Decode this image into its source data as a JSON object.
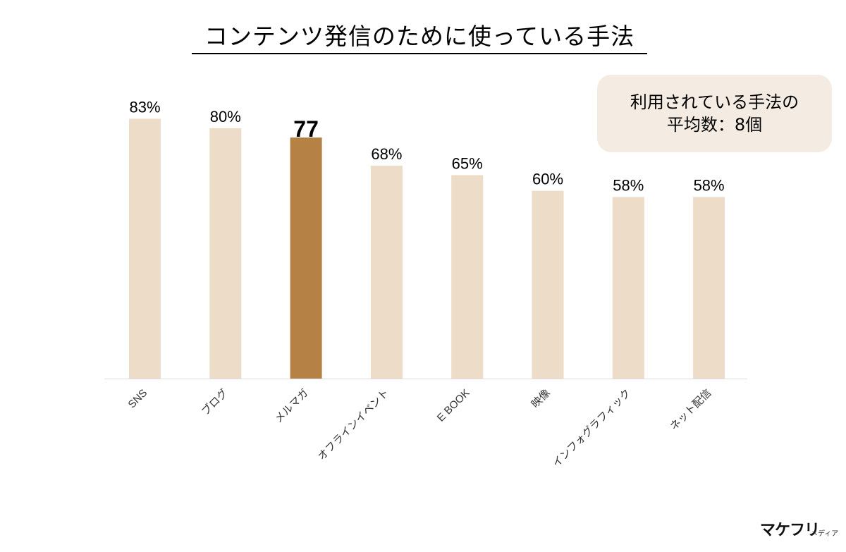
{
  "chart_data": {
    "type": "bar",
    "title": "コンテンツ発信のために使っている手法",
    "categories": [
      "SNS",
      "ブログ",
      "メルマガ",
      "オフラインイベント",
      "E BOOK",
      "映像",
      "インフォグラフィック",
      "ネット配信"
    ],
    "values": [
      83,
      80,
      77,
      68,
      65,
      60,
      58,
      58
    ],
    "value_labels": [
      "83%",
      "80%",
      "77",
      "68%",
      "65%",
      "60%",
      "58%",
      "58%"
    ],
    "highlight_index": 2,
    "ylim": [
      0,
      100
    ],
    "grid": false,
    "legend": "none",
    "xlabel": "",
    "ylabel": "",
    "colors": {
      "bar": "#ecdcc8",
      "highlight_bar": "#b68144",
      "axis": "#dddddd"
    }
  },
  "average_box": {
    "line1": "利用されている手法の",
    "line2": "平均数：8個",
    "background": "#f4ece2"
  },
  "logo": {
    "main": "マケフリ",
    "sub": "メディア"
  }
}
